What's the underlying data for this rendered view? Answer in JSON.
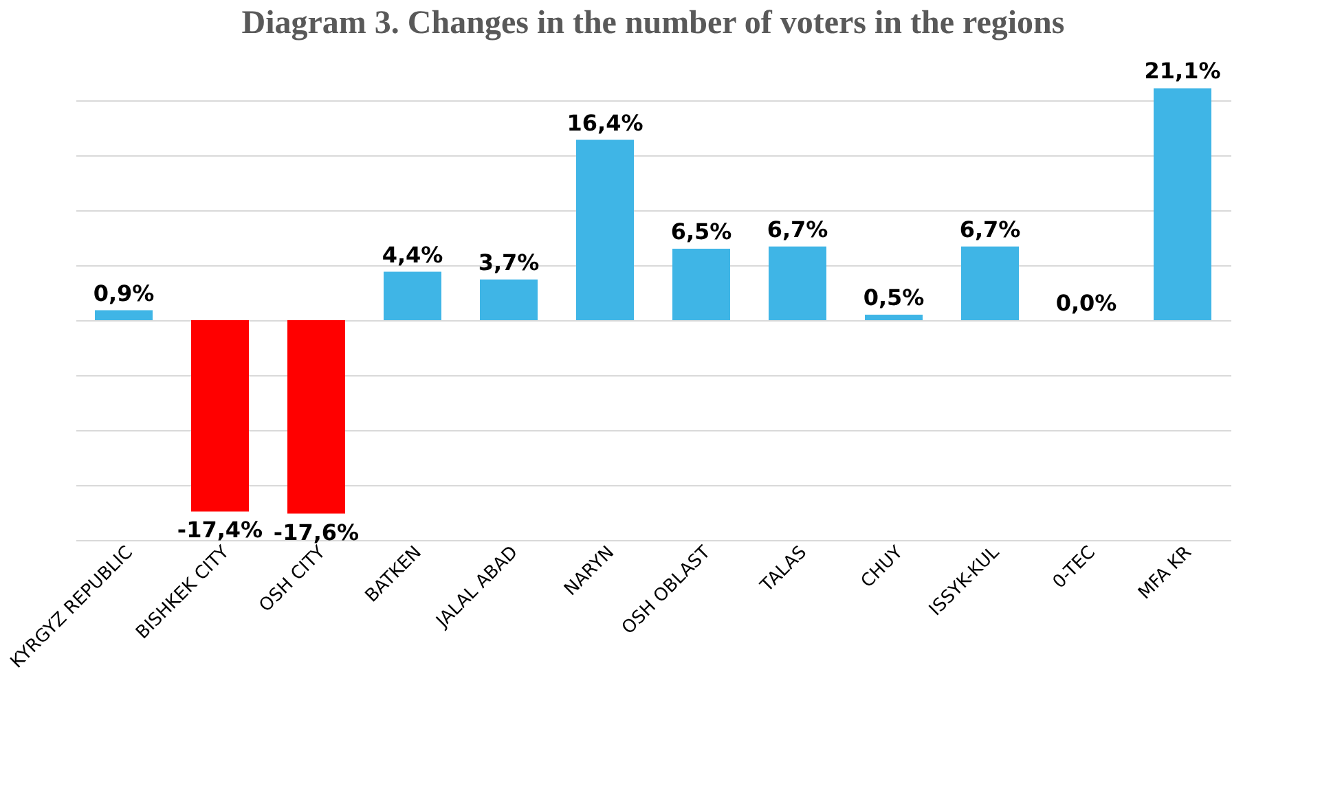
{
  "chart_data": {
    "type": "bar",
    "title": "Diagram 3. Changes in the number of voters in the regions",
    "categories": [
      "KYRGYZ REPUBLIC",
      "BISHKEK CITY",
      "OSH CITY",
      "BATKEN",
      "JALAL ABAD",
      "NARYN",
      "OSH OBLAST",
      "TALAS",
      "CHUY",
      "ISSYK-KUL",
      "0-TEC",
      "MFA KR"
    ],
    "values": [
      0.9,
      -17.4,
      -17.6,
      4.4,
      3.7,
      16.4,
      6.5,
      6.7,
      0.5,
      6.7,
      0.0,
      21.1
    ],
    "value_labels": [
      "0,9%",
      "-17,4%",
      "-17,6%",
      "4,4%",
      "3,7%",
      "16,4%",
      "6,5%",
      "6,7%",
      "0,5%",
      "6,7%",
      "0,0%",
      "21,1%"
    ],
    "colors": [
      "#3fb5e6",
      "#ff0000",
      "#ff0000",
      "#3fb5e6",
      "#3fb5e6",
      "#3fb5e6",
      "#3fb5e6",
      "#3fb5e6",
      "#3fb5e6",
      "#3fb5e6",
      "#3fb5e6",
      "#3fb5e6"
    ],
    "yticks": [
      {
        "value": -20,
        "label": null
      },
      {
        "value": -15,
        "label": null
      },
      {
        "value": -10,
        "label": null
      },
      {
        "value": -5,
        "label": null
      },
      {
        "value": 0,
        "label": null
      },
      {
        "value": 5,
        "label": null
      },
      {
        "value": 10,
        "label": null
      },
      {
        "value": 15,
        "label": null
      },
      {
        "value": 20,
        "label": null
      }
    ],
    "grid": "y",
    "tick_labels": "x"
  }
}
